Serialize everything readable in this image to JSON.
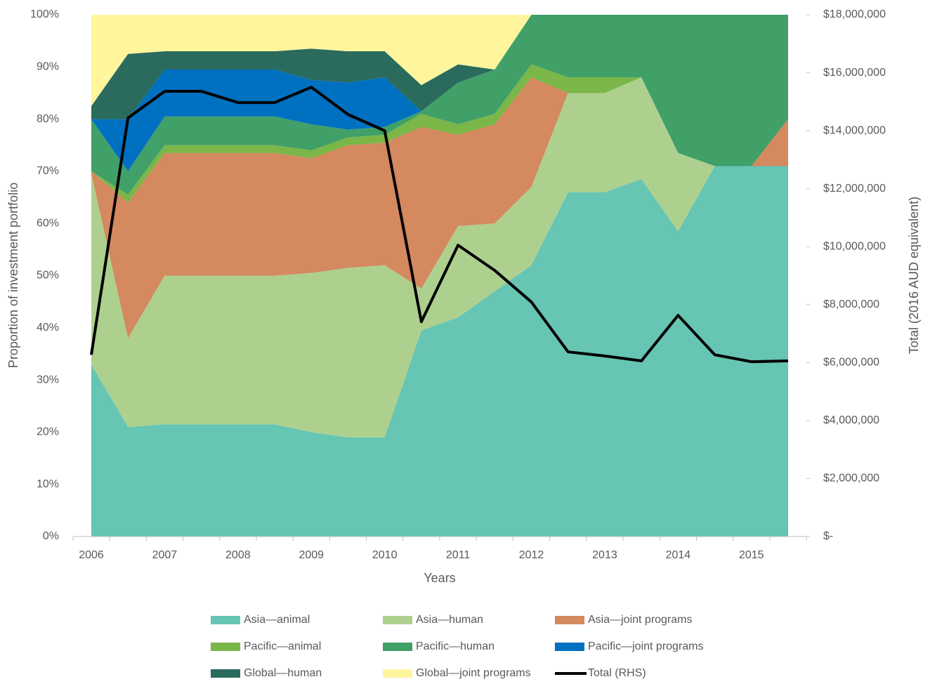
{
  "chart_data": {
    "type": "stacked-area-line",
    "x_label": "Years",
    "y_label": "Proportion of investment portfolio",
    "y2_label": "Total (2016 AUD equivalent)",
    "categories": [
      "2006",
      null,
      "2007",
      null,
      "2008",
      null,
      "2009",
      null,
      "2010",
      null,
      "2011",
      null,
      "2012",
      null,
      "2013",
      null,
      "2014",
      null,
      "2015",
      null
    ],
    "ylim": [
      0,
      100
    ],
    "yticks": [
      {
        "value": 0,
        "label": "0%"
      },
      {
        "value": 10,
        "label": "10%"
      },
      {
        "value": 20,
        "label": "20%"
      },
      {
        "value": 30,
        "label": "30%"
      },
      {
        "value": 40,
        "label": "40%"
      },
      {
        "value": 50,
        "label": "50%"
      },
      {
        "value": 60,
        "label": "60%"
      },
      {
        "value": 70,
        "label": "70%"
      },
      {
        "value": 80,
        "label": "80%"
      },
      {
        "value": 90,
        "label": "90%"
      },
      {
        "value": 100,
        "label": "100%"
      }
    ],
    "y2lim": [
      0,
      18000000
    ],
    "y2ticks": [
      {
        "value": 0,
        "label": "$-"
      },
      {
        "value": 2000000,
        "label": "$2,000,000"
      },
      {
        "value": 4000000,
        "label": "$4,000,000"
      },
      {
        "value": 6000000,
        "label": "$6,000,000"
      },
      {
        "value": 8000000,
        "label": "$8,000,000"
      },
      {
        "value": 10000000,
        "label": "$10,000,000"
      },
      {
        "value": 12000000,
        "label": "$12,000,000"
      },
      {
        "value": 14000000,
        "label": "$14,000,000"
      },
      {
        "value": 16000000,
        "label": "$16,000,000"
      },
      {
        "value": 18000000,
        "label": "$18,000,000"
      }
    ],
    "series": [
      {
        "name": "Asia—animal",
        "color": "#66c5b3",
        "values": [
          33,
          21,
          21.5,
          21.5,
          21.5,
          21.5,
          20,
          19,
          19,
          39.5,
          42,
          47,
          52,
          66,
          66,
          68.5,
          58.5,
          71,
          71,
          71
        ]
      },
      {
        "name": "Asia—human",
        "color": "#aed08e",
        "values": [
          36.5,
          17,
          28.5,
          28.5,
          28.5,
          28.5,
          30.5,
          32.5,
          33,
          8,
          17.5,
          13,
          15,
          19,
          19,
          19.5,
          15,
          0,
          0,
          0
        ]
      },
      {
        "name": "Asia—joint programs",
        "color": "#d4895f",
        "values": [
          0.5,
          26,
          23.5,
          23.5,
          23.5,
          23.5,
          22,
          23.5,
          23.5,
          31,
          17.5,
          19,
          21,
          0,
          0,
          0,
          0,
          0,
          0,
          9
        ]
      },
      {
        "name": "Pacific—animal",
        "color": "#7ab648",
        "values": [
          0,
          1.5,
          1.5,
          1.5,
          1.5,
          1.5,
          1.5,
          1.5,
          1.5,
          2.5,
          2,
          2,
          2.5,
          3,
          3,
          0,
          0,
          0,
          0,
          0
        ]
      },
      {
        "name": "Pacific—human",
        "color": "#40a068",
        "values": [
          10,
          4.5,
          5.5,
          5.5,
          5.5,
          5.5,
          5,
          1.5,
          1.5,
          0.5,
          8,
          8.5,
          9.5,
          12,
          12,
          12,
          26.5,
          29,
          29,
          20
        ]
      },
      {
        "name": "Pacific—joint programs",
        "color": "#0070c0",
        "values": [
          0,
          10,
          9,
          9,
          9,
          9,
          8.5,
          9,
          9.5,
          0,
          0,
          0,
          0,
          0,
          0,
          0,
          0,
          0,
          0,
          0
        ]
      },
      {
        "name": "Global—human",
        "color": "#2a6b5e",
        "values": [
          2.5,
          12.5,
          3.5,
          3.5,
          3.5,
          3.5,
          6,
          6,
          5,
          5,
          3.5,
          0,
          0,
          0,
          0,
          0,
          0,
          0,
          0,
          0
        ]
      },
      {
        "name": "Global—joint programs",
        "color": "#fff59d",
        "values": [
          17.5,
          7.5,
          7,
          7,
          7,
          7,
          6.5,
          7,
          7,
          13.5,
          9.5,
          10.5,
          0,
          0,
          0,
          0,
          0,
          0,
          0,
          0
        ]
      },
      {
        "name": "Total (RHS)",
        "color": "#000000",
        "axis": "y2",
        "values": [
          6270000,
          14440000,
          15360000,
          15360000,
          14970000,
          14970000,
          15500000,
          14560000,
          14000000,
          7410000,
          10050000,
          9180000,
          8090000,
          6370000,
          6230000,
          6060000,
          7630000,
          6270000,
          6030000,
          6060000
        ]
      }
    ]
  }
}
